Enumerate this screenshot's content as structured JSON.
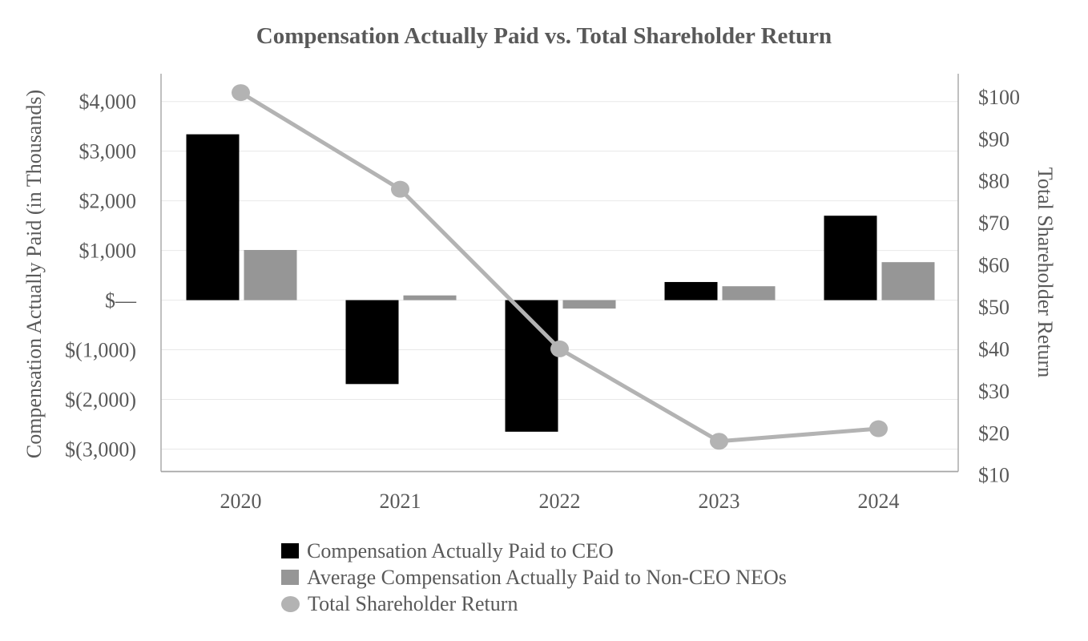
{
  "chart_data": {
    "type": "combo-bar-line",
    "title": "Compensation Actually Paid vs. Total Shareholder Return",
    "categories": [
      "2020",
      "2021",
      "2022",
      "2023",
      "2024"
    ],
    "series": [
      {
        "name": "Compensation Actually Paid to CEO",
        "type": "bar",
        "axis": "left",
        "color": "#000000",
        "values": [
          3340,
          -1690,
          -2650,
          365,
          1700
        ]
      },
      {
        "name": "Average Compensation Actually Paid to Non-CEO NEOs",
        "type": "bar",
        "axis": "left",
        "color": "#969696",
        "values": [
          1010,
          95,
          -170,
          280,
          765
        ]
      },
      {
        "name": "Total Shareholder Return",
        "type": "line",
        "axis": "right",
        "color": "#b3b3b3",
        "values": [
          101,
          78,
          40,
          18,
          21
        ]
      }
    ],
    "left_axis": {
      "title": "Compensation Actually Paid (in Thousands)",
      "ticks": [
        4000,
        3000,
        2000,
        1000,
        0,
        -1000,
        -2000,
        -3000
      ],
      "tick_labels": [
        "$4,000",
        "$3,000",
        "$2,000",
        "$1,000",
        "$—",
        "$(1,000)",
        "$(2,000)",
        "$(3,000)"
      ],
      "range": [
        -3452,
        4560
      ],
      "gridlines": true
    },
    "right_axis": {
      "title": "Total Shareholder Return",
      "ticks": [
        100,
        90,
        80,
        70,
        60,
        50,
        40,
        30,
        20,
        10
      ],
      "tick_labels": [
        "$100",
        "$90",
        "$80",
        "$70",
        "$60",
        "$50",
        "$40",
        "$30",
        "$20",
        "$10"
      ],
      "range": [
        10.8,
        105.5
      ],
      "gridlines": false
    },
    "legend_position": "bottom-left",
    "style": {
      "text_color": "#595959",
      "gridline_color": "#e8e8e8",
      "axis_line_color": "#a6a6a6",
      "background": "#ffffff"
    }
  }
}
